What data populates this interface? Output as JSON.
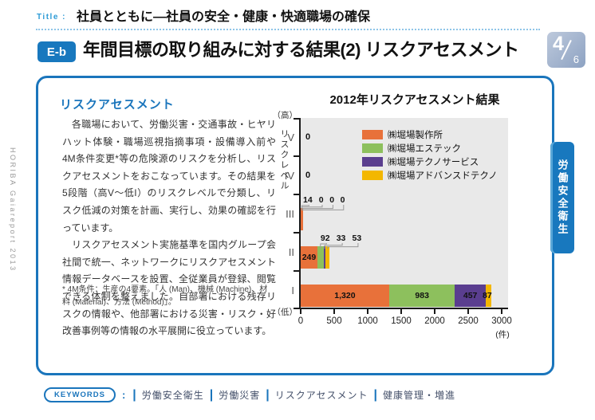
{
  "sidebar_vertical_text": "HORIBA Gaiareport 2013",
  "header": {
    "title_label": "Title :",
    "doc_title": "社員とともに―社員の安全・健康・快適職場の確保",
    "section_badge": "E-b",
    "section_title": "年間目標の取り組みに対する結果(2) リスクアセスメント",
    "page_current": "4",
    "page_total": "6"
  },
  "side_tab_label": "労働安全衛生",
  "article": {
    "heading": "リスクアセスメント",
    "paragraphs": [
      "各職場において、労働災害・交通事故・ヒヤリハット体験・職場巡視指摘事項・設備導入前や4M条件変更*等の危険源のリスクを分析し、リスクアセスメントをおこなっています。その結果を5段階（高V～低I）のリスクレベルで分類し、リスク低減の対策を計画、実行し、効果の確認を行っています。",
      "リスクアセスメント実施基準を国内グループ会社間で統一、ネットワークにリスクアセスメント情報データベースを設置、全従業員が登録、閲覧できる体制を整えました。自部署における残存リスクの情報や、他部署における災害・リスク・好改善事例等の情報の水平展開に役立っています。"
    ],
    "footnote": "* 4M条件：生産の4要素。「人 (Man)、機械 (Machine)、材料 (Material)、方法 (Method)」。"
  },
  "keywords": {
    "label": "KEYWORDS",
    "colon": ":",
    "items": [
      "労働安全衛生",
      "労働災害",
      "リスクアセスメント",
      "健康管理・増進"
    ]
  },
  "chart_data": {
    "type": "bar",
    "orientation": "horizontal",
    "stacked": true,
    "title": "2012年リスクアセスメント結果",
    "categories": [
      "V",
      "IV",
      "III",
      "II",
      "I"
    ],
    "category_axis_label": "リスクレベル",
    "axis_high_label": "（高）",
    "axis_low_label": "（低）",
    "value_axis_unit": "(件)",
    "xlim": [
      0,
      3000
    ],
    "x_ticks": [
      0,
      500,
      1000,
      1500,
      2000,
      2500,
      3000
    ],
    "grid": false,
    "legend_position": "top-right-inside",
    "plot_background": "#e9e9e9",
    "series": [
      {
        "name": "㈱堀場製作所",
        "color": "#e8713a",
        "values": [
          0,
          0,
          14,
          249,
          1320
        ]
      },
      {
        "name": "㈱堀場エステック",
        "color": "#8dc05d",
        "values": [
          0,
          0,
          0,
          92,
          983
        ]
      },
      {
        "name": "㈱堀場テクノサービス",
        "color": "#5a3e8f",
        "values": [
          0,
          0,
          0,
          33,
          457
        ]
      },
      {
        "name": "㈱堀場アドバンスドテクノ",
        "color": "#f3b700",
        "values": [
          0,
          0,
          0,
          53,
          87
        ]
      }
    ],
    "bar_labels": {
      "V": [
        "0"
      ],
      "IV": [
        "0"
      ],
      "III": [
        "14",
        "0",
        "0",
        "0"
      ],
      "II": [
        "249",
        "92",
        "33",
        "53"
      ],
      "I": [
        "1,320",
        "983",
        "457",
        "87"
      ]
    }
  }
}
